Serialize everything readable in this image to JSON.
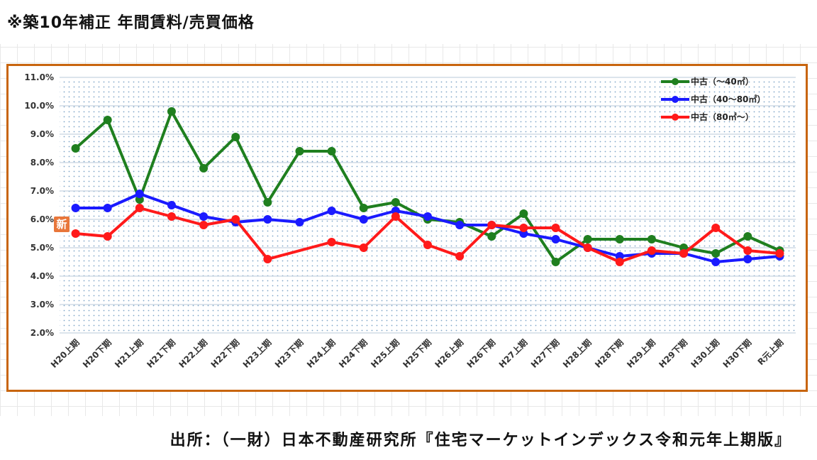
{
  "page": {
    "title": "※築10年補正 年間賃料/売買価格",
    "source": "出所：（一財）日本不動産研究所『住宅マーケットインデックス令和元年上期版』",
    "badge": "新"
  },
  "chart_data": {
    "type": "line",
    "title": "",
    "xlabel": "",
    "ylabel": "",
    "ylim": [
      2.0,
      11.0
    ],
    "yticks": [
      "2.0%",
      "3.0%",
      "4.0%",
      "5.0%",
      "6.0%",
      "7.0%",
      "8.0%",
      "9.0%",
      "10.0%",
      "11.0%"
    ],
    "grid": "dotted background",
    "legend_position": "top-right",
    "categories": [
      "H20上期",
      "H20下期",
      "H21上期",
      "H21下期",
      "H22上期",
      "H22下期",
      "H23上期",
      "H23下期",
      "H24上期",
      "H24下期",
      "H25上期",
      "H25下期",
      "H26上期",
      "H26下期",
      "H27上期",
      "H27下期",
      "H28上期",
      "H28下期",
      "H29上期",
      "H29下期",
      "H30上期",
      "H30下期",
      "R元上期"
    ],
    "series": [
      {
        "name": "中古（～40㎡）",
        "color": "#1f7f1f",
        "values": [
          8.5,
          9.5,
          6.7,
          9.8,
          7.8,
          8.9,
          6.6,
          8.4,
          8.4,
          6.4,
          6.6,
          6.0,
          5.9,
          5.4,
          6.2,
          4.5,
          5.3,
          5.3,
          5.3,
          5.0,
          4.8,
          5.4,
          4.9
        ]
      },
      {
        "name": "中古（40～80㎡）",
        "color": "#1a1aff",
        "values": [
          6.4,
          6.4,
          6.9,
          6.5,
          6.1,
          5.9,
          6.0,
          5.9,
          6.3,
          6.0,
          6.3,
          6.1,
          5.8,
          5.8,
          5.5,
          5.3,
          5.0,
          4.7,
          4.8,
          4.8,
          4.5,
          4.6,
          4.7
        ]
      },
      {
        "name": "中古（80㎡～）",
        "color": "#ff1a1a",
        "values": [
          5.5,
          5.4,
          6.4,
          6.1,
          5.8,
          6.0,
          4.6,
          null,
          5.2,
          5.0,
          6.1,
          5.1,
          4.7,
          5.8,
          5.7,
          5.7,
          5.0,
          4.5,
          4.9,
          4.8,
          5.7,
          4.9,
          4.8
        ]
      }
    ]
  }
}
